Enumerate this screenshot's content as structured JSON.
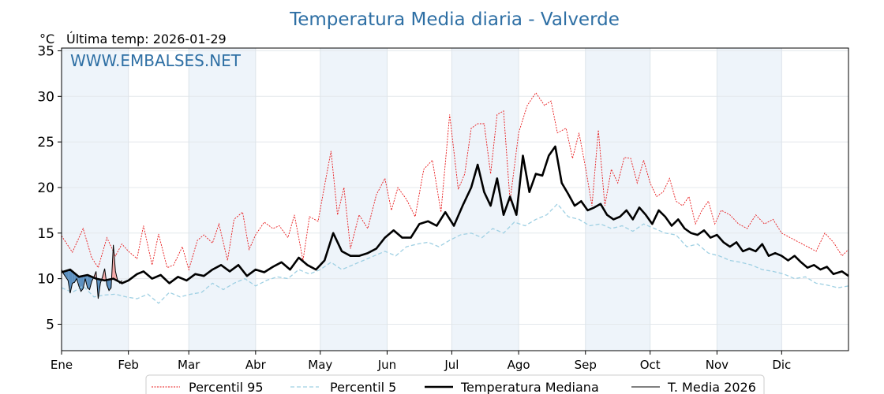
{
  "chart_data": {
    "type": "line",
    "title": "Temperatura Media diaria - Valverde",
    "subtitle": "Última temp: 2026-01-29",
    "ylabel": "°C",
    "watermark": "WWW.EMBALSES.NET",
    "ylim": [
      2.1,
      35.3
    ],
    "xlim_days": [
      0,
      365
    ],
    "yticks": [
      5,
      10,
      15,
      20,
      25,
      30,
      35
    ],
    "months": [
      {
        "label": "Ene",
        "day": 0
      },
      {
        "label": "Feb",
        "day": 31
      },
      {
        "label": "Mar",
        "day": 59
      },
      {
        "label": "Abr",
        "day": 90
      },
      {
        "label": "May",
        "day": 120
      },
      {
        "label": "Jun",
        "day": 151
      },
      {
        "label": "Jul",
        "day": 181
      },
      {
        "label": "Ago",
        "day": 212
      },
      {
        "label": "Sep",
        "day": 243
      },
      {
        "label": "Oct",
        "day": 273
      },
      {
        "label": "Nov",
        "day": 304
      },
      {
        "label": "Dic",
        "day": 334
      }
    ],
    "grid": true,
    "legend_position": "bottom",
    "colors": {
      "p95": "#e8191b",
      "p5": "#9fd0e3",
      "median": "#000000",
      "current": "#000000",
      "below_fill": "#5b8fbf",
      "above_fill": "#f4a9a8",
      "shade": "#eef4fa",
      "title": "#2e6fa4"
    },
    "series": [
      {
        "name": "Percentil 95",
        "key": "p95",
        "x": [
          0,
          5,
          10,
          14,
          17,
          21,
          25,
          28,
          31,
          35,
          38,
          42,
          45,
          49,
          52,
          56,
          59,
          63,
          66,
          70,
          73,
          77,
          80,
          84,
          87,
          90,
          94,
          98,
          101,
          105,
          108,
          112,
          115,
          119,
          122,
          125,
          128,
          131,
          134,
          138,
          142,
          146,
          150,
          153,
          156,
          160,
          164,
          168,
          172,
          176,
          180,
          184,
          187,
          190,
          193,
          196,
          199,
          202,
          205,
          208,
          212,
          216,
          220,
          224,
          227,
          230,
          234,
          237,
          240,
          243,
          246,
          249,
          252,
          255,
          258,
          261,
          264,
          267,
          270,
          273,
          276,
          279,
          282,
          285,
          288,
          291,
          294,
          297,
          300,
          303,
          306,
          310,
          314,
          318,
          322,
          326,
          330,
          334,
          338,
          342,
          346,
          350,
          354,
          358,
          362,
          365
        ],
        "values": [
          14.7,
          12.9,
          15.5,
          12.3,
          11.2,
          14.5,
          12.5,
          13.8,
          13.0,
          12.2,
          15.8,
          11.5,
          14.9,
          11.2,
          11.5,
          13.5,
          11.0,
          14.2,
          14.8,
          13.9,
          16.0,
          12.0,
          16.5,
          17.3,
          13.2,
          14.8,
          16.2,
          15.5,
          15.8,
          14.5,
          17.0,
          12.0,
          16.8,
          16.3,
          20.2,
          24.0,
          17.0,
          20.0,
          13.3,
          17.0,
          15.5,
          19.2,
          21.0,
          17.5,
          20.0,
          18.7,
          16.8,
          22.0,
          23.0,
          17.3,
          28.0,
          19.8,
          21.5,
          26.5,
          27.0,
          27.0,
          21.5,
          28.0,
          28.4,
          18.5,
          26.0,
          29.0,
          30.4,
          29.0,
          29.5,
          26.0,
          26.5,
          23.2,
          26.0,
          22.2,
          18.0,
          26.3,
          18.0,
          22.0,
          20.5,
          23.3,
          23.2,
          20.5,
          23.0,
          20.5,
          19.0,
          19.5,
          21.0,
          18.5,
          18.0,
          19.0,
          16.0,
          17.5,
          18.5,
          16.0,
          17.5,
          17.0,
          16.0,
          15.5,
          17.0,
          16.0,
          16.5,
          15.0,
          14.5,
          14.0,
          13.5,
          13.0,
          15.0,
          14.0,
          12.5,
          13.2
        ]
      },
      {
        "name": "Percentil 5",
        "key": "p5",
        "x": [
          0,
          5,
          10,
          15,
          20,
          25,
          30,
          35,
          40,
          45,
          50,
          55,
          60,
          65,
          70,
          75,
          80,
          85,
          90,
          95,
          100,
          105,
          110,
          115,
          120,
          125,
          130,
          135,
          140,
          145,
          150,
          155,
          160,
          165,
          170,
          175,
          180,
          185,
          190,
          195,
          200,
          205,
          210,
          215,
          220,
          225,
          230,
          235,
          240,
          245,
          250,
          255,
          260,
          265,
          270,
          275,
          280,
          285,
          290,
          295,
          300,
          305,
          310,
          315,
          320,
          325,
          330,
          335,
          340,
          345,
          350,
          355,
          360,
          365
        ],
        "values": [
          9.0,
          8.5,
          9.2,
          8.0,
          8.2,
          8.3,
          8.0,
          7.8,
          8.3,
          7.3,
          8.5,
          8.0,
          8.3,
          8.5,
          9.5,
          8.8,
          9.5,
          10.0,
          9.2,
          9.8,
          10.2,
          10.0,
          11.0,
          10.5,
          11.0,
          11.8,
          11.0,
          11.5,
          12.0,
          12.5,
          13.0,
          12.5,
          13.5,
          13.8,
          14.0,
          13.5,
          14.2,
          14.8,
          15.0,
          14.5,
          15.5,
          15.0,
          16.2,
          15.8,
          16.5,
          17.0,
          18.2,
          16.8,
          16.5,
          15.8,
          16.0,
          15.5,
          15.8,
          15.2,
          16.0,
          15.5,
          15.0,
          14.8,
          13.5,
          13.8,
          12.8,
          12.5,
          12.0,
          11.8,
          11.5,
          11.0,
          10.8,
          10.5,
          10.0,
          10.2,
          9.5,
          9.3,
          9.0,
          9.2
        ]
      },
      {
        "name": "Temperatura Mediana",
        "key": "median",
        "x": [
          0,
          4,
          8,
          12,
          16,
          20,
          24,
          28,
          31,
          35,
          38,
          42,
          46,
          50,
          54,
          58,
          62,
          66,
          70,
          74,
          78,
          82,
          86,
          90,
          94,
          98,
          102,
          106,
          110,
          114,
          118,
          122,
          126,
          130,
          134,
          138,
          142,
          146,
          150,
          154,
          158,
          162,
          166,
          170,
          174,
          178,
          182,
          186,
          190,
          193,
          196,
          199,
          202,
          205,
          208,
          211,
          214,
          217,
          220,
          223,
          226,
          229,
          232,
          235,
          238,
          241,
          244,
          247,
          250,
          253,
          256,
          259,
          262,
          265,
          268,
          271,
          274,
          277,
          280,
          283,
          286,
          289,
          292,
          295,
          298,
          301,
          304,
          307,
          310,
          313,
          316,
          319,
          322,
          325,
          328,
          331,
          334,
          337,
          340,
          343,
          346,
          349,
          352,
          355,
          358,
          362,
          365
        ],
        "values": [
          10.7,
          11.0,
          10.2,
          10.4,
          10.0,
          9.8,
          10.0,
          9.5,
          9.8,
          10.5,
          10.8,
          10.0,
          10.4,
          9.5,
          10.2,
          9.8,
          10.5,
          10.3,
          11.0,
          11.5,
          10.8,
          11.5,
          10.3,
          11.0,
          10.7,
          11.3,
          11.8,
          11.0,
          12.3,
          11.5,
          11.0,
          12.0,
          15.0,
          13.0,
          12.5,
          12.5,
          12.8,
          13.3,
          14.5,
          15.3,
          14.5,
          14.5,
          16.0,
          16.3,
          15.8,
          17.3,
          15.8,
          18.0,
          20.0,
          22.5,
          19.5,
          18.0,
          21.0,
          17.0,
          19.0,
          17.0,
          23.5,
          19.5,
          21.5,
          21.3,
          23.5,
          24.5,
          20.5,
          19.3,
          18.0,
          18.5,
          17.5,
          17.8,
          18.2,
          17.0,
          16.5,
          16.8,
          17.5,
          16.5,
          17.8,
          17.0,
          16.0,
          17.5,
          16.8,
          15.8,
          16.5,
          15.5,
          15.0,
          14.8,
          15.3,
          14.5,
          14.8,
          14.0,
          13.5,
          14.0,
          13.0,
          13.3,
          13.0,
          13.8,
          12.5,
          12.8,
          12.5,
          12.0,
          12.5,
          11.8,
          11.2,
          11.5,
          11.0,
          11.3,
          10.5,
          10.8,
          10.3
        ]
      },
      {
        "name": "T. Media 2026",
        "key": "current",
        "x": [
          0,
          1,
          3,
          4,
          5,
          6,
          7,
          8,
          9,
          10,
          11,
          12,
          13,
          14,
          15,
          16,
          17,
          18,
          19,
          20,
          21,
          22,
          23,
          24,
          25,
          26,
          27,
          28
        ],
        "values": [
          11.0,
          10.5,
          9.8,
          8.4,
          9.5,
          9.6,
          10.0,
          9.2,
          8.6,
          8.9,
          10.0,
          9.0,
          8.8,
          9.7,
          10.2,
          10.8,
          7.8,
          9.5,
          10.2,
          11.1,
          9.3,
          8.7,
          9.0,
          13.7,
          10.8,
          9.8,
          9.5,
          9.8
        ]
      }
    ]
  }
}
